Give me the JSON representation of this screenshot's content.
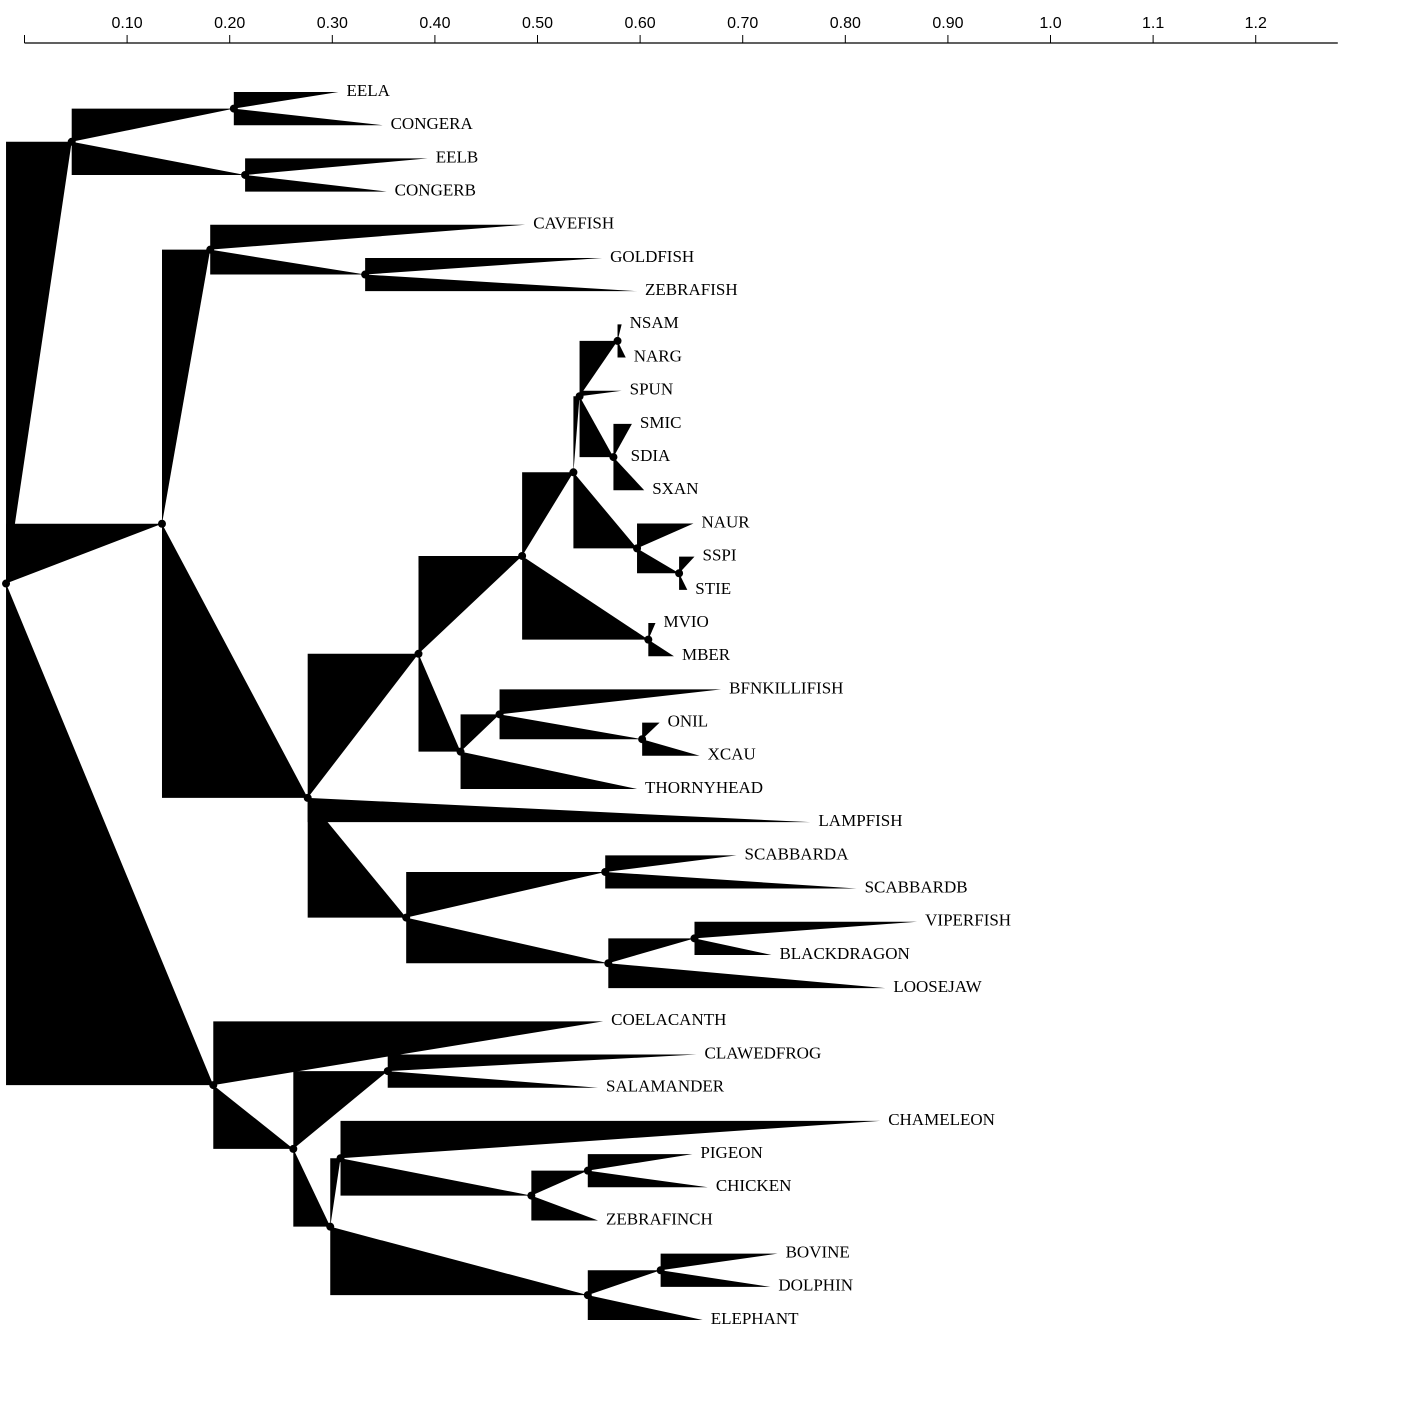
{
  "axis": {
    "xlim": [
      0,
      1.28
    ],
    "xticks": [
      {
        "value": 0.1,
        "label": "0.10"
      },
      {
        "value": 0.2,
        "label": "0.20"
      },
      {
        "value": 0.3,
        "label": "0.30"
      },
      {
        "value": 0.4,
        "label": "0.40"
      },
      {
        "value": 0.5,
        "label": "0.50"
      },
      {
        "value": 0.6,
        "label": "0.60"
      },
      {
        "value": 0.7,
        "label": "0.70"
      },
      {
        "value": 0.8,
        "label": "0.80"
      },
      {
        "value": 0.9,
        "label": "0.90"
      },
      {
        "value": 1,
        "label": "1.0"
      },
      1.1,
      1.2
    ]
  },
  "tree": {
    "x": -0.018,
    "children": [
      {
        "x": 0.046,
        "children": [
          {
            "x": 0.204,
            "children": [
              {
                "label": "EELA",
                "x": 0.306
              },
              {
                "label": "CONGERA",
                "x": 0.349
              }
            ]
          },
          {
            "x": 0.215,
            "children": [
              {
                "label": "EELB",
                "x": 0.393
              },
              {
                "label": "CONGERB",
                "x": 0.353
              }
            ]
          }
        ]
      },
      {
        "x": 0.134,
        "children": [
          {
            "x": 0.181,
            "children": [
              {
                "label": "CAVEFISH",
                "x": 0.488
              },
              {
                "x": 0.332,
                "children": [
                  {
                    "label": "GOLDFISH",
                    "x": 0.563
                  },
                  {
                    "label": "ZEBRAFISH",
                    "x": 0.597
                  }
                ]
              }
            ]
          },
          {
            "x": 0.276,
            "children": [
              {
                "x": 0.384,
                "children": [
                  {
                    "x": 0.485,
                    "children": [
                      {
                        "x": 0.535,
                        "children": [
                          {
                            "x": 0.541,
                            "children": [
                              {
                                "x": 0.578,
                                "children": [
                                  {
                                    "label": "NSAM",
                                    "x": 0.582
                                  },
                                  {
                                    "label": "NARG",
                                    "x": 0.586
                                  }
                                ]
                              },
                              {
                                "label": "SPUN",
                                "x": 0.582
                              },
                              {
                                "x": 0.574,
                                "children": [
                                  {
                                    "label": "SMIC",
                                    "x": 0.592
                                  },
                                  {
                                    "label": "SDIA",
                                    "x": 0.583
                                  },
                                  {
                                    "label": "SXAN",
                                    "x": 0.604
                                  }
                                ]
                              }
                            ]
                          },
                          {
                            "x": 0.597,
                            "children": [
                              {
                                "label": "NAUR",
                                "x": 0.652
                              },
                              {
                                "x": 0.638,
                                "children": [
                                  {
                                    "label": "SSPI",
                                    "x": 0.653
                                  },
                                  {
                                    "label": "STIE",
                                    "x": 0.646
                                  }
                                ]
                              }
                            ]
                          }
                        ]
                      },
                      {
                        "x": 0.608,
                        "children": [
                          {
                            "label": "MVIO",
                            "x": 0.615
                          },
                          {
                            "label": "MBER",
                            "x": 0.633
                          }
                        ]
                      }
                    ]
                  },
                  {
                    "x": 0.425,
                    "children": [
                      {
                        "x": 0.463,
                        "children": [
                          {
                            "label": "BFNKILLIFISH",
                            "x": 0.679
                          },
                          {
                            "x": 0.602,
                            "children": [
                              {
                                "label": "ONIL",
                                "x": 0.619
                              },
                              {
                                "label": "XCAU",
                                "x": 0.658
                              }
                            ]
                          }
                        ]
                      },
                      {
                        "label": "THORNYHEAD",
                        "x": 0.597
                      }
                    ]
                  }
                ]
              },
              {
                "label": "LAMPFISH",
                "x": 0.766
              },
              {
                "x": 0.372,
                "children": [
                  {
                    "x": 0.566,
                    "children": [
                      {
                        "label": "SCABBARDA",
                        "x": 0.694
                      },
                      {
                        "label": "SCABBARDB",
                        "x": 0.811
                      }
                    ]
                  },
                  {
                    "x": 0.569,
                    "children": [
                      {
                        "x": 0.653,
                        "children": [
                          {
                            "label": "VIPERFISH",
                            "x": 0.87
                          },
                          {
                            "label": "BLACKDRAGON",
                            "x": 0.728
                          }
                        ]
                      },
                      {
                        "label": "LOOSEJAW",
                        "x": 0.839
                      }
                    ]
                  }
                ]
              }
            ]
          }
        ]
      },
      {
        "x": 0.184,
        "children": [
          {
            "label": "COELACANTH",
            "x": 0.564
          },
          {
            "x": 0.262,
            "children": [
              {
                "x": 0.354,
                "children": [
                  {
                    "label": "CLAWEDFROG",
                    "x": 0.655
                  },
                  {
                    "label": "SALAMANDER",
                    "x": 0.559
                  }
                ]
              },
              {
                "x": 0.298,
                "children": [
                  {
                    "x": 0.308,
                    "children": [
                      {
                        "label": "CHAMELEON",
                        "x": 0.834
                      },
                      {
                        "x": 0.494,
                        "children": [
                          {
                            "x": 0.549,
                            "children": [
                              {
                                "label": "PIGEON",
                                "x": 0.651
                              },
                              {
                                "label": "CHICKEN",
                                "x": 0.666
                              }
                            ]
                          },
                          {
                            "label": "ZEBRAFINCH",
                            "x": 0.559
                          }
                        ]
                      }
                    ]
                  },
                  {
                    "x": 0.549,
                    "children": [
                      {
                        "x": 0.62,
                        "children": [
                          {
                            "label": "BOVINE",
                            "x": 0.734
                          },
                          {
                            "label": "DOLPHIN",
                            "x": 0.727
                          }
                        ]
                      },
                      {
                        "label": "ELEPHANT",
                        "x": 0.661
                      }
                    ]
                  }
                ]
              }
            ]
          }
        ]
      }
    ]
  }
}
